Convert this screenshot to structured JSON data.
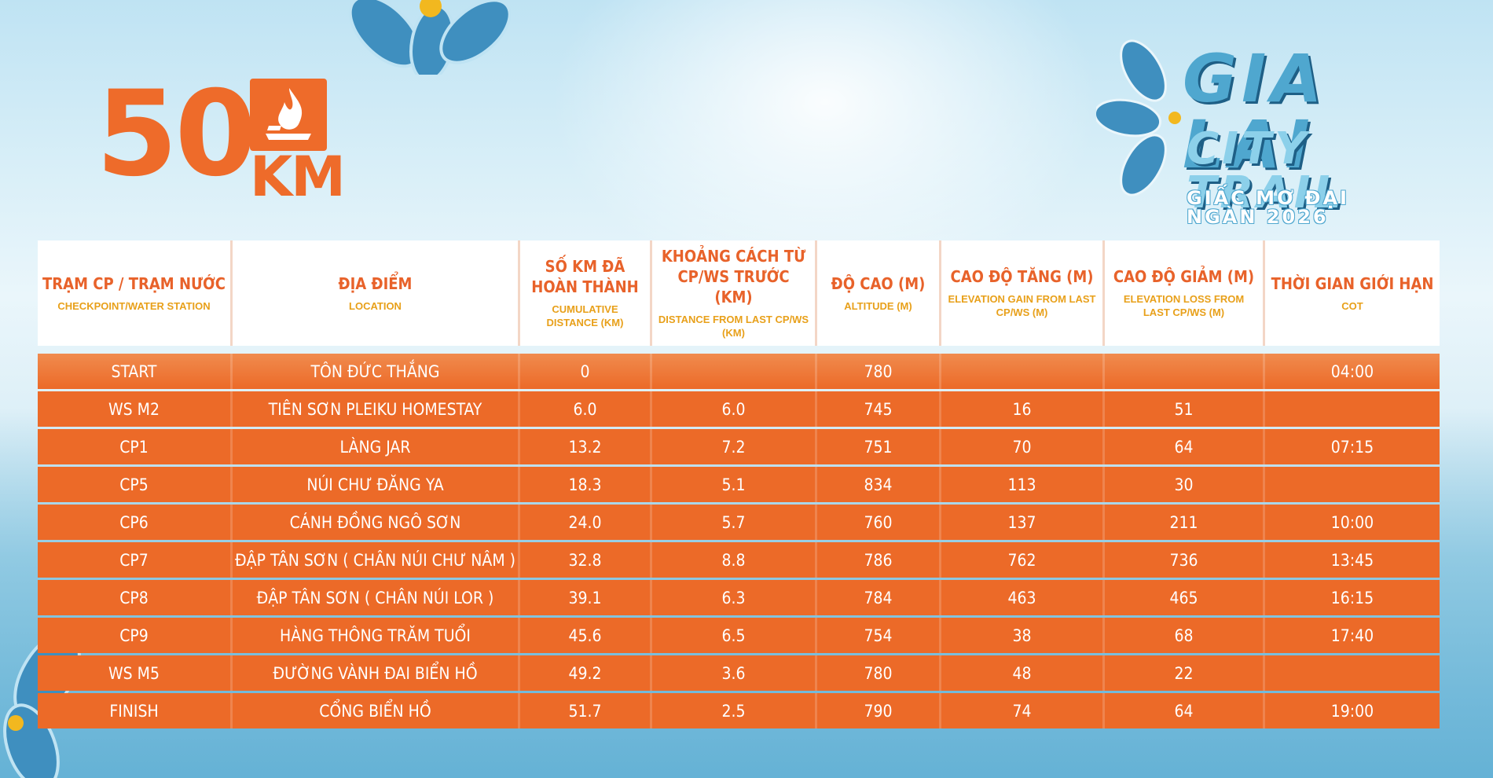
{
  "race": {
    "distance_number": "50",
    "distance_unit": "KM"
  },
  "logo": {
    "title": "GIA LAI",
    "subtitle": "CITY TRAIL",
    "tagline": "GIẤC MƠ ĐẠI NGÀN 2026"
  },
  "headers": [
    {
      "main": "TRẠM CP / TRẠM NƯỚC",
      "sub": "CHECKPOINT/WATER STATION"
    },
    {
      "main": "ĐỊA ĐIỂM",
      "sub": "LOCATION"
    },
    {
      "main": "SỐ KM ĐÃ HOÀN THÀNH",
      "sub": "CUMULATIVE DISTANCE (KM)"
    },
    {
      "main": "KHOẢNG CÁCH TỪ CP/WS TRƯỚC (KM)",
      "sub": "DISTANCE FROM LAST CP/WS (KM)"
    },
    {
      "main": "ĐỘ CAO (M)",
      "sub": "ALTITUDE (M)"
    },
    {
      "main": "CAO ĐỘ TĂNG (M)",
      "sub": "ELEVATION GAIN FROM LAST CP/WS (M)"
    },
    {
      "main": "CAO ĐỘ GIẢM (M)",
      "sub": "ELEVATION LOSS FROM LAST CP/WS (M)"
    },
    {
      "main": "THỜI GIAN GIỚI HẠN",
      "sub": "COT"
    }
  ],
  "rows": [
    [
      "START",
      "TÔN ĐỨC THẮNG",
      "0",
      "",
      "780",
      "",
      "",
      "04:00"
    ],
    [
      "WS M2",
      "TIÊN SƠN PLEIKU HOMESTAY",
      "6.0",
      "6.0",
      "745",
      "16",
      "51",
      ""
    ],
    [
      "CP1",
      "LÀNG JAR",
      "13.2",
      "7.2",
      "751",
      "70",
      "64",
      "07:15"
    ],
    [
      "CP5",
      "NÚI CHƯ ĐĂNG YA",
      "18.3",
      "5.1",
      "834",
      "113",
      "30",
      ""
    ],
    [
      "CP6",
      "CÁNH ĐỒNG NGÔ SƠN",
      "24.0",
      "5.7",
      "760",
      "137",
      "211",
      "10:00"
    ],
    [
      "CP7",
      "ĐẬP TÂN SƠN ( CHÂN NÚI CHƯ NÂM )",
      "32.8",
      "8.8",
      "786",
      "762",
      "736",
      "13:45"
    ],
    [
      "CP8",
      "ĐẬP TÂN SƠN ( CHÂN NÚI LOR )",
      "39.1",
      "6.3",
      "784",
      "463",
      "465",
      "16:15"
    ],
    [
      "CP9",
      "HÀNG THÔNG TRĂM TUỔI",
      "45.6",
      "6.5",
      "754",
      "38",
      "68",
      "17:40"
    ],
    [
      "WS M5",
      "ĐƯỜNG VÀNH ĐAI BIỂN HỒ",
      "49.2",
      "3.6",
      "780",
      "48",
      "22",
      ""
    ],
    [
      "FINISH",
      "CỔNG BIỂN HỒ",
      "51.7",
      "2.5",
      "790",
      "74",
      "64",
      "19:00"
    ]
  ],
  "colors": {
    "accent": "#ec6a28",
    "header_text": "#e8622a",
    "header_sub": "#e8a01a",
    "logo_blue": "#4fa7cf"
  }
}
